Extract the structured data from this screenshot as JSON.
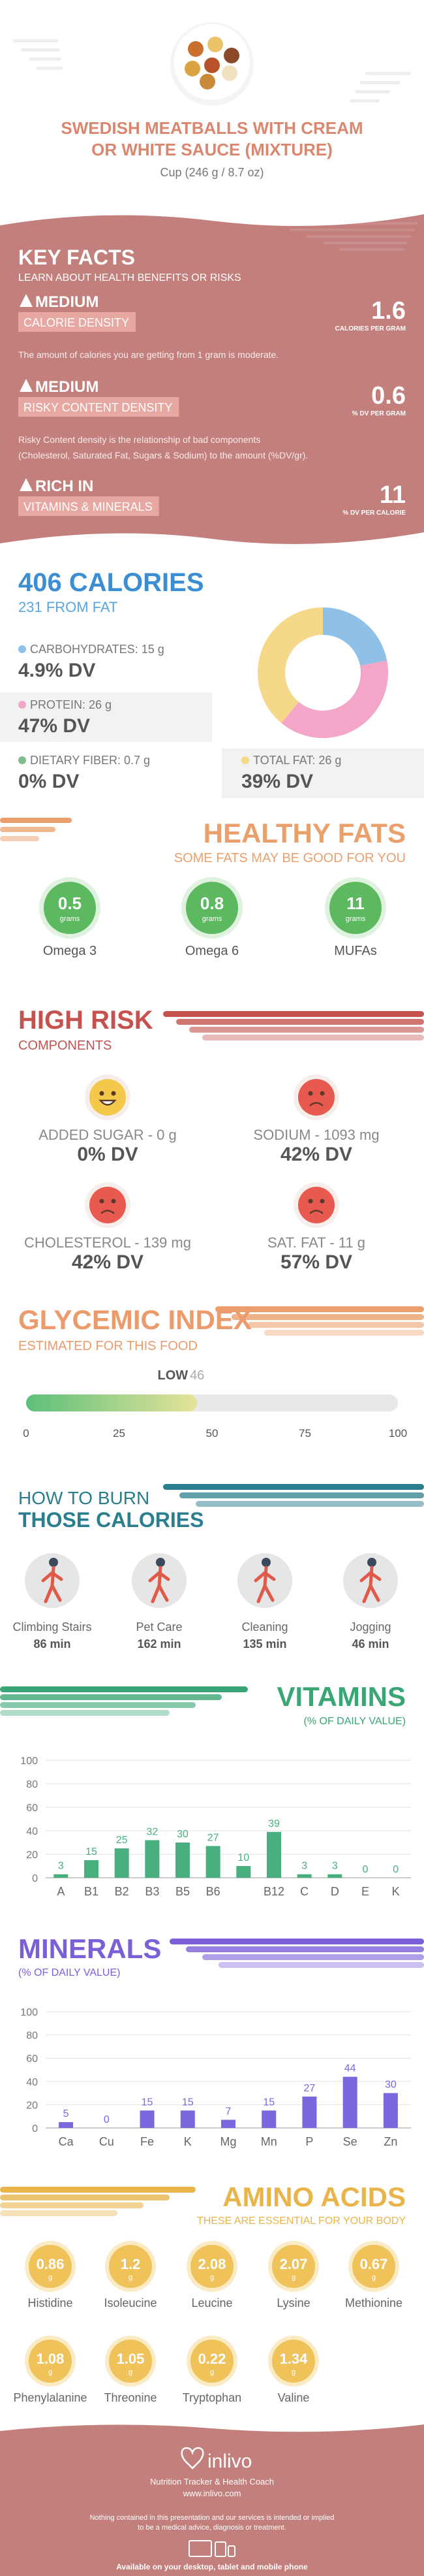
{
  "header": {
    "title_lines": [
      "SWEDISH MEATBALLS WITH CREAM",
      "OR WHITE SAUCE (MIXTURE)"
    ],
    "serving": "Cup (246 g / 8.7 oz)"
  },
  "key_facts": {
    "title": "KEY FACTS",
    "subtitle": "LEARN ABOUT HEALTH BENEFITS OR RISKS",
    "items": [
      {
        "level": "MEDIUM",
        "name": "CALORIE DENSITY",
        "value": "1.6",
        "unit": "CALORIES PER GRAM",
        "description": [
          "The amount of calories you are getting from 1 gram is moderate."
        ]
      },
      {
        "level": "MEDIUM",
        "name": "RISKY CONTENT DENSITY",
        "value": "0.6",
        "unit": "% DV PER GRAM",
        "description": [
          "Risky Content density is the relationship of bad components",
          "(Cholesterol, Saturated Fat, Sugars & Sodium) to the amount (%DV/gr)."
        ]
      },
      {
        "level": "RICH IN",
        "name": "VITAMINS & MINERALS",
        "value": "11",
        "unit": "% DV PER CALORIE"
      }
    ]
  },
  "calories": {
    "title": "406 CALORIES",
    "subtitle": "231 FROM FAT",
    "nutrients": [
      {
        "label": "CARBOHYDRATES: 15 g",
        "dv": "4.9% DV",
        "color": "#8fc1e8"
      },
      {
        "label": "PROTEIN: 26 g",
        "dv": "47% DV",
        "color": "#f4a6c9"
      },
      {
        "label": "DIETARY FIBER: 0.7 g",
        "dv": "0% DV",
        "color": "#7fbf8f"
      },
      {
        "label": "TOTAL FAT: 26 g",
        "dv": "39% DV",
        "color": "#f6d88a"
      }
    ],
    "chart_data": {
      "type": "pie",
      "donut": true,
      "values": [
        22,
        39,
        39
      ],
      "colors": [
        "#8fc1e8",
        "#f4a6c9",
        "#f6d88a"
      ]
    }
  },
  "healthy_fats": {
    "title": "HEALTHY FATS",
    "subtitle": "SOME FATS MAY BE GOOD FOR YOU",
    "items": [
      {
        "value": "0.5",
        "unit": "grams",
        "name": "Omega 3"
      },
      {
        "value": "0.8",
        "unit": "grams",
        "name": "Omega 6"
      },
      {
        "value": "11",
        "unit": "grams",
        "name": "MUFAs"
      }
    ]
  },
  "high_risk": {
    "title": "HIGH RISK",
    "subtitle": "COMPONENTS",
    "items": [
      {
        "label": "ADDED SUGAR - 0 g",
        "dv": "0% DV"
      },
      {
        "label": "SODIUM - 1093 mg",
        "dv": "42% DV"
      },
      {
        "label": "CHOLESTEROL - 139 mg",
        "dv": "42% DV"
      },
      {
        "label": "SAT. FAT - 11 g",
        "dv": "57% DV"
      }
    ]
  },
  "glycemic": {
    "title": "GLYCEMIC INDEX",
    "subtitle": "ESTIMATED FOR THIS FOOD",
    "chart_data": {
      "type": "gauge",
      "label": "LOW",
      "value": 46,
      "xlim": [
        0,
        100
      ],
      "xticks": [
        0,
        25,
        50,
        75,
        100
      ]
    }
  },
  "burn": {
    "title": [
      "HOW TO BURN",
      "THOSE CALORIES"
    ],
    "activities": [
      {
        "name": "Climbing Stairs",
        "time": "86 min"
      },
      {
        "name": "Pet Care",
        "time": "162 min"
      },
      {
        "name": "Cleaning",
        "time": "135 min"
      },
      {
        "name": "Jogging",
        "time": "46 min"
      }
    ]
  },
  "vitamins": {
    "title": "VITAMINS",
    "subtitle": "(% OF DAILY VALUE)",
    "chart_data": {
      "type": "bar",
      "categories": [
        "A",
        "B1",
        "B2",
        "B3",
        "B5",
        "B6",
        null,
        "B12",
        "C",
        "D",
        "E",
        "K"
      ],
      "values": [
        3,
        15,
        25,
        32,
        30,
        27,
        10,
        39,
        3,
        3,
        0,
        0
      ],
      "color": "#47b07e",
      "ylim": [
        0,
        100
      ],
      "yticks": [
        0,
        20,
        40,
        60,
        80,
        100
      ],
      "grid": true
    }
  },
  "minerals": {
    "title": "MINERALS",
    "subtitle": "(% OF DAILY VALUE)",
    "chart_data": {
      "type": "bar",
      "categories": [
        "Ca",
        "Cu",
        "Fe",
        "K",
        "Mg",
        "Mn",
        "P",
        "Se",
        "Zn"
      ],
      "values": [
        5,
        0,
        15,
        15,
        7,
        15,
        27,
        44,
        30
      ],
      "color": "#7c66dd",
      "ylim": [
        0,
        100
      ],
      "yticks": [
        0,
        20,
        40,
        60,
        80,
        100
      ],
      "grid": true
    }
  },
  "amino_acids": {
    "title": "AMINO ACIDS",
    "subtitle": "THESE ARE ESSENTIAL FOR YOUR BODY",
    "unit": "g",
    "items": [
      {
        "name": "Histidine",
        "value": "0.86"
      },
      {
        "name": "Isoleucine",
        "value": "1.2"
      },
      {
        "name": "Leucine",
        "value": "2.08"
      },
      {
        "name": "Lysine",
        "value": "2.07"
      },
      {
        "name": "Methionine",
        "value": "0.67"
      },
      {
        "name": "Phenylalanine",
        "value": "1.08"
      },
      {
        "name": "Threonine",
        "value": "1.05"
      },
      {
        "name": "Tryptophan",
        "value": "0.22"
      },
      {
        "name": "Valine",
        "value": "1.34"
      }
    ]
  },
  "footer": {
    "brand": "inlivo",
    "tagline": "Nutrition Tracker & Health Coach",
    "url": "www.inlivo.com",
    "disclaimer": [
      "Nothing contained in this presentation and our services is intended or implied",
      "to be a medical advice, diagnosis or treatment."
    ],
    "available": "Available on your desktop, tablet and mobile phone"
  }
}
